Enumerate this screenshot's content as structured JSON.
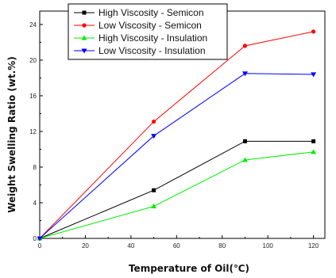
{
  "chart_data": {
    "type": "line",
    "title": "",
    "xlabel": "Temperature of Oil(℃)",
    "ylabel": "Weight Swelling Ratio (wt.%)",
    "xlim": [
      0,
      125
    ],
    "ylim": [
      0,
      25.5
    ],
    "xticks": [
      "0",
      "20",
      "40",
      "60",
      "80",
      "100",
      "120"
    ],
    "yticks": [
      "0",
      "4",
      "8",
      "12",
      "16",
      "20",
      "24"
    ],
    "legend_position": "top-left",
    "grid": false,
    "series": [
      {
        "name": "High Viscosity - Semicon",
        "color": "#000000",
        "marker": "square",
        "x": [
          0,
          50,
          90,
          120
        ],
        "y": [
          0,
          5.4,
          10.9,
          10.9
        ]
      },
      {
        "name": "Low Viscosity - Semicon",
        "color": "#ff0000",
        "marker": "circle",
        "x": [
          0,
          50,
          90,
          120
        ],
        "y": [
          0,
          13.1,
          21.6,
          23.2
        ]
      },
      {
        "name": "High Viscosity - Insulation",
        "color": "#00ee00",
        "marker": "triangle-up",
        "x": [
          0,
          50,
          90,
          120
        ],
        "y": [
          0,
          3.6,
          8.8,
          9.7
        ]
      },
      {
        "name": "Low Viscosity - Insulation",
        "color": "#0000ff",
        "marker": "triangle-down",
        "x": [
          0,
          50,
          90,
          120
        ],
        "y": [
          0,
          11.5,
          18.5,
          18.4
        ]
      }
    ]
  }
}
